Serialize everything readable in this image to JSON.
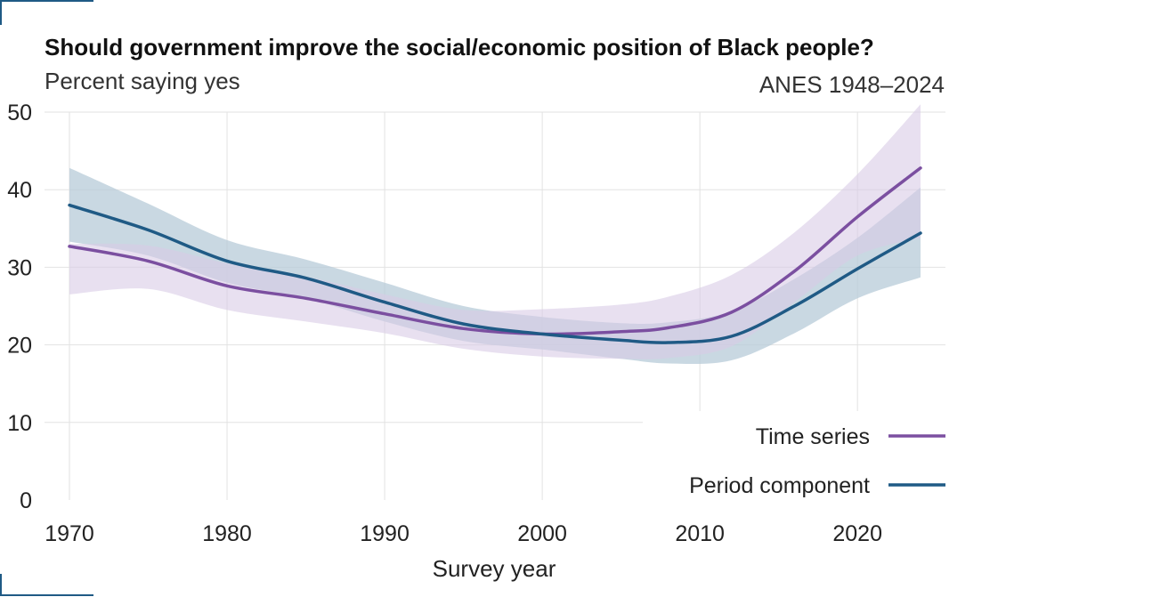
{
  "chart_data": {
    "type": "line",
    "title": "Should government improve the social/economic position of Black people?",
    "subtitle": "Percent saying yes",
    "source": "ANES 1948–2024",
    "xlabel": "Survey year",
    "ylabel": "",
    "xlim": [
      1970,
      2024
    ],
    "ylim": [
      0,
      50
    ],
    "x_ticks": [
      1970,
      1980,
      1990,
      2000,
      2010,
      2020
    ],
    "y_ticks": [
      0,
      10,
      20,
      30,
      40,
      50
    ],
    "grid": true,
    "legend_position": "bottom-right",
    "series": [
      {
        "name": "Time series",
        "color": "#7b4fa0",
        "band_color": "#d9cbe6",
        "x": [
          1970,
          1975,
          1980,
          1985,
          1990,
          1995,
          2000,
          2005,
          2008,
          2012,
          2016,
          2020,
          2024
        ],
        "y": [
          32.7,
          30.8,
          27.6,
          26.0,
          24.0,
          22.1,
          21.4,
          21.7,
          22.2,
          24.2,
          29.5,
          36.5,
          42.8
        ],
        "lower": [
          26.5,
          27.2,
          24.5,
          23.0,
          21.5,
          19.5,
          18.5,
          18.2,
          18.3,
          19.8,
          25.5,
          31.5,
          33.8
        ],
        "upper": [
          33.0,
          32.8,
          30.5,
          28.8,
          26.5,
          24.5,
          24.6,
          25.2,
          26.2,
          29.0,
          34.5,
          42.0,
          51.0
        ]
      },
      {
        "name": "Period component",
        "color": "#1f5a85",
        "band_color": "#b7cbd8",
        "x": [
          1970,
          1975,
          1980,
          1985,
          1990,
          1995,
          2000,
          2005,
          2008,
          2012,
          2016,
          2020,
          2024
        ],
        "y": [
          38.0,
          34.8,
          30.8,
          28.6,
          25.5,
          22.7,
          21.4,
          20.6,
          20.3,
          21.1,
          25.0,
          29.8,
          34.4
        ],
        "lower": [
          33.3,
          31.5,
          28.0,
          26.0,
          23.0,
          20.5,
          19.4,
          18.2,
          17.6,
          18.0,
          21.5,
          26.0,
          28.7
        ],
        "upper": [
          42.8,
          38.2,
          33.5,
          31.0,
          28.0,
          25.0,
          23.6,
          22.8,
          22.9,
          24.3,
          28.5,
          33.8,
          40.3
        ]
      }
    ]
  }
}
